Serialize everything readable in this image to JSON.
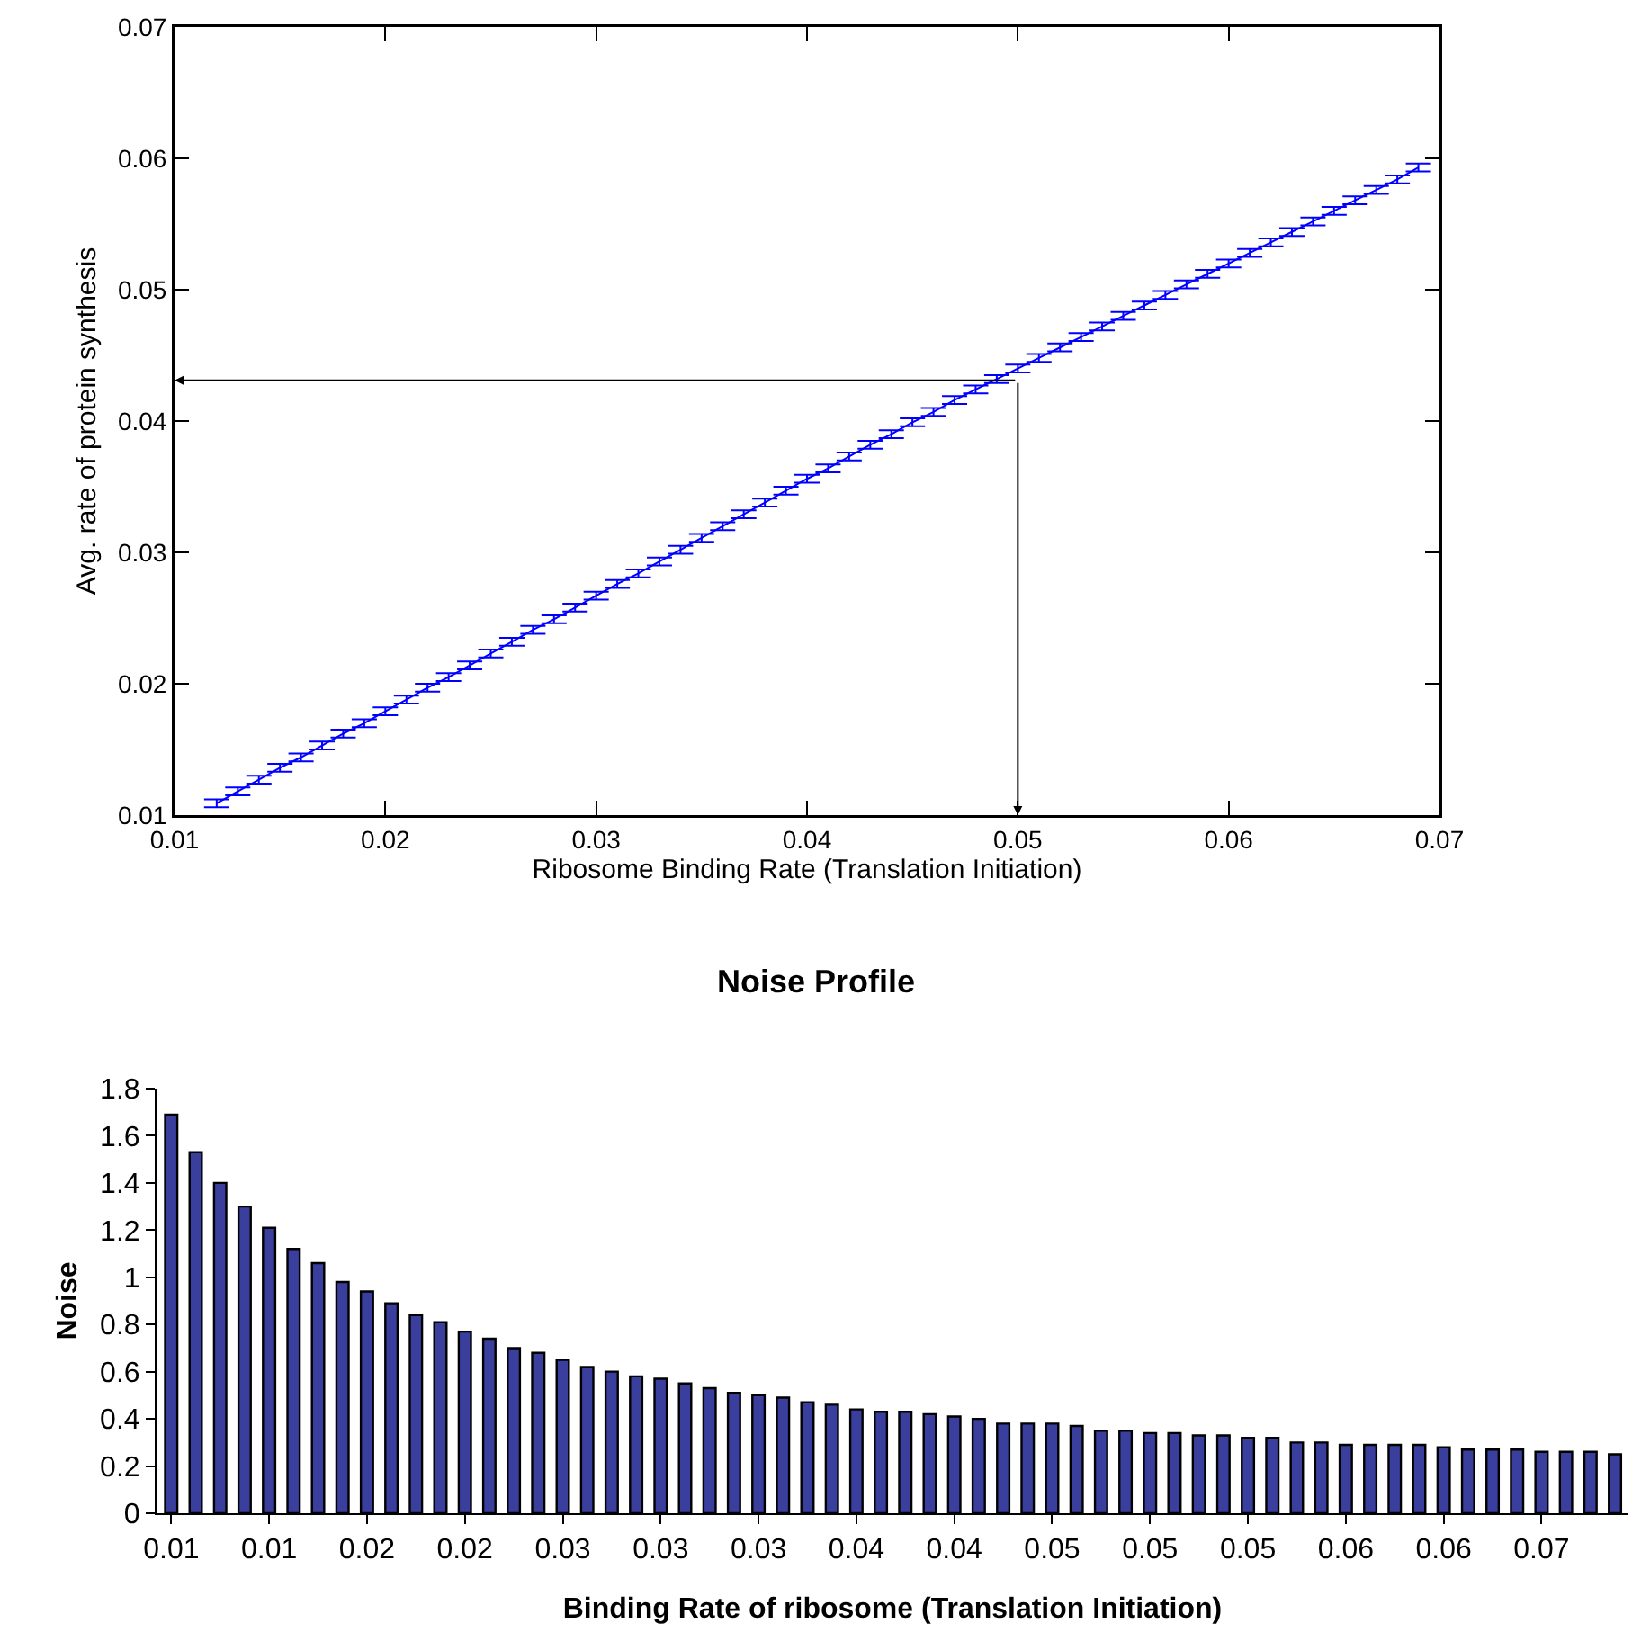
{
  "chart_data": [
    {
      "type": "line",
      "xlabel": "Ribosome Binding Rate (Translation Initiation)",
      "ylabel": "Avg. rate of protein synthesis",
      "color": "#0000ff",
      "marker": "none",
      "grid": false,
      "x": [
        0.012,
        0.013,
        0.014,
        0.015,
        0.016,
        0.017,
        0.018,
        0.019,
        0.02,
        0.021,
        0.022,
        0.023,
        0.024,
        0.025,
        0.026,
        0.027,
        0.028,
        0.029,
        0.03,
        0.031,
        0.032,
        0.033,
        0.034,
        0.035,
        0.036,
        0.037,
        0.038,
        0.039,
        0.04,
        0.041,
        0.042,
        0.043,
        0.044,
        0.045,
        0.046,
        0.047,
        0.048,
        0.049,
        0.05,
        0.051,
        0.052,
        0.053,
        0.054,
        0.055,
        0.056,
        0.057,
        0.058,
        0.059,
        0.06,
        0.061,
        0.062,
        0.063,
        0.064,
        0.065,
        0.066,
        0.067,
        0.068,
        0.069
      ],
      "values": [
        0.0109,
        0.0118,
        0.0127,
        0.0136,
        0.0144,
        0.0153,
        0.0162,
        0.017,
        0.0179,
        0.0188,
        0.0197,
        0.0205,
        0.0214,
        0.0223,
        0.0232,
        0.0241,
        0.0249,
        0.0258,
        0.0267,
        0.0276,
        0.0284,
        0.0293,
        0.0302,
        0.0311,
        0.032,
        0.0329,
        0.0338,
        0.0347,
        0.0356,
        0.0364,
        0.0373,
        0.0382,
        0.039,
        0.0399,
        0.0407,
        0.0416,
        0.0424,
        0.0432,
        0.044,
        0.0448,
        0.0456,
        0.0464,
        0.0472,
        0.048,
        0.0488,
        0.0496,
        0.0504,
        0.0512,
        0.052,
        0.0528,
        0.0536,
        0.0544,
        0.0552,
        0.056,
        0.0568,
        0.0576,
        0.0584,
        0.0593
      ],
      "errors": [
        0.0003,
        0.0003,
        0.0003,
        0.0003,
        0.0003,
        0.0003,
        0.0003,
        0.0003,
        0.0003,
        0.0003,
        0.0003,
        0.0003,
        0.0003,
        0.0003,
        0.0003,
        0.0003,
        0.0003,
        0.0003,
        0.0003,
        0.0003,
        0.0003,
        0.0003,
        0.0003,
        0.0003,
        0.0003,
        0.0003,
        0.0003,
        0.0003,
        0.0003,
        0.0003,
        0.0003,
        0.0003,
        0.0003,
        0.0003,
        0.0003,
        0.0003,
        0.0003,
        0.0003,
        0.0003,
        0.0003,
        0.0003,
        0.0003,
        0.0003,
        0.0003,
        0.0003,
        0.0003,
        0.0003,
        0.0003,
        0.0003,
        0.0003,
        0.0003,
        0.0003,
        0.0003,
        0.0003,
        0.0003,
        0.0003,
        0.0003,
        0.0003
      ],
      "xlim": [
        0.01,
        0.07
      ],
      "xticks": [
        0.01,
        0.02,
        0.03,
        0.04,
        0.05,
        0.06,
        0.07
      ],
      "ylim": [
        0.01,
        0.07
      ],
      "yticks": [
        0.01,
        0.02,
        0.03,
        0.04,
        0.05,
        0.06,
        0.07
      ],
      "ref_lines": [
        {
          "axis": "x",
          "value": 0.05,
          "color": "#000000"
        },
        {
          "axis": "y",
          "value": 0.0431,
          "color": "#000000"
        }
      ]
    },
    {
      "type": "bar",
      "title": "Noise Profile",
      "xlabel": "Binding Rate of ribosome (Translation Initiation)",
      "ylabel": "Noise",
      "color": "#3a3f9e",
      "grid": false,
      "categories": [
        "0.01",
        null,
        null,
        null,
        "0.01",
        null,
        null,
        null,
        "0.02",
        null,
        null,
        null,
        "0.02",
        null,
        null,
        null,
        "0.03",
        null,
        null,
        null,
        "0.03",
        null,
        null,
        null,
        "0.03",
        null,
        null,
        null,
        "0.04",
        null,
        null,
        null,
        "0.04",
        null,
        null,
        null,
        "0.05",
        null,
        null,
        null,
        "0.05",
        null,
        null,
        null,
        "0.05",
        null,
        null,
        null,
        "0.06",
        null,
        null,
        null,
        "0.06",
        null,
        null,
        null,
        "0.07",
        null,
        null,
        null
      ],
      "values": [
        1.69,
        1.53,
        1.4,
        1.3,
        1.21,
        1.12,
        1.06,
        0.98,
        0.94,
        0.89,
        0.84,
        0.81,
        0.77,
        0.74,
        0.7,
        0.68,
        0.65,
        0.62,
        0.6,
        0.58,
        0.57,
        0.55,
        0.53,
        0.51,
        0.5,
        0.49,
        0.47,
        0.46,
        0.44,
        0.43,
        0.43,
        0.42,
        0.41,
        0.4,
        0.38,
        0.38,
        0.38,
        0.37,
        0.35,
        0.35,
        0.34,
        0.34,
        0.33,
        0.33,
        0.32,
        0.32,
        0.3,
        0.3,
        0.29,
        0.29,
        0.29,
        0.29,
        0.28,
        0.27,
        0.27,
        0.27,
        0.26,
        0.26,
        0.26,
        0.25
      ],
      "ylim": [
        0,
        1.8
      ],
      "yticks": [
        0,
        0.2,
        0.4,
        0.6,
        0.8,
        1,
        1.2,
        1.4,
        1.6,
        1.8
      ]
    }
  ]
}
